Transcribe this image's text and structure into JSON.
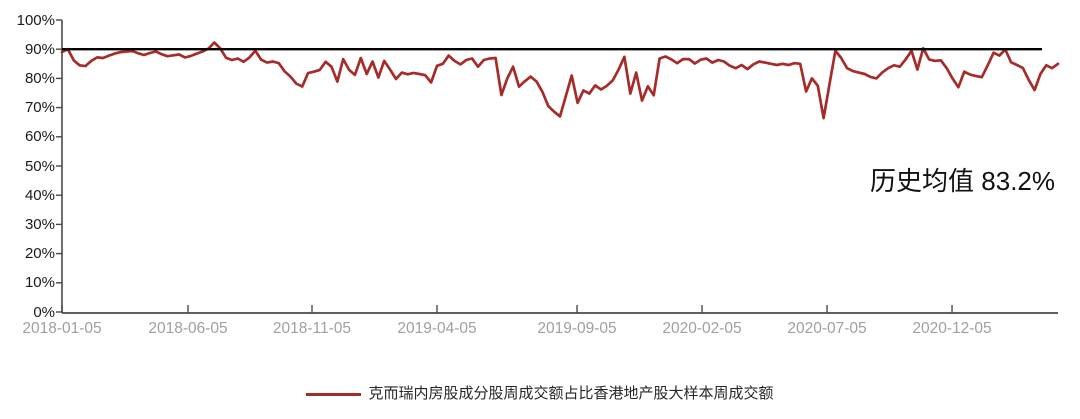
{
  "colors": {
    "series_line": "#a62c2a",
    "reference_line": "#000000",
    "axis": "#4a4a4a",
    "y_tick_label": "#1a1a1a",
    "x_tick_label": "#a0a0a0",
    "annotation_text": "#111111",
    "legend_text": "#262626",
    "background": "#ffffff"
  },
  "chart_data": {
    "type": "line",
    "title": "",
    "xlabel": "",
    "ylabel": "",
    "ylim": [
      0,
      100
    ],
    "grid": false,
    "legend_position": "bottom-center",
    "y_ticks": [
      {
        "value": 0,
        "label": "0%"
      },
      {
        "value": 10,
        "label": "10%"
      },
      {
        "value": 20,
        "label": "20%"
      },
      {
        "value": 30,
        "label": "30%"
      },
      {
        "value": 40,
        "label": "40%"
      },
      {
        "value": 50,
        "label": "50%"
      },
      {
        "value": 60,
        "label": "60%"
      },
      {
        "value": 70,
        "label": "70%"
      },
      {
        "value": 80,
        "label": "80%"
      },
      {
        "value": 90,
        "label": "90%"
      },
      {
        "value": 100,
        "label": "100%"
      }
    ],
    "x_ticks": [
      {
        "label": "2018-01-05",
        "pos": 0.0
      },
      {
        "label": "2018-06-05",
        "pos": 0.1265
      },
      {
        "label": "2018-11-05",
        "pos": 0.251
      },
      {
        "label": "2019-04-05",
        "pos": 0.3765
      },
      {
        "label": "2019-09-05",
        "pos": 0.5171
      },
      {
        "label": "2020-02-05",
        "pos": 0.6426
      },
      {
        "label": "2020-07-05",
        "pos": 0.7681
      },
      {
        "label": "2020-12-05",
        "pos": 0.8936
      }
    ],
    "reference_line": {
      "value": 90
    },
    "annotation": {
      "text": "历史均值 83.2%",
      "mean_percent": 83.2
    },
    "series": [
      {
        "name": "克而瑞内房股成分股周成交额占比香港地产股大样本周成交额",
        "unit": "%",
        "x_start": "2018-01-05",
        "x_interval": "weekly",
        "values": [
          89,
          90,
          86.2,
          84.5,
          84.2,
          86,
          87.2,
          87,
          87.8,
          88.5,
          89,
          89.2,
          89.4,
          88.6,
          88,
          88.7,
          89.2,
          88.3,
          87.6,
          87.9,
          88.2,
          87.2,
          87.7,
          88.5,
          89.2,
          90.2,
          92.3,
          90.3,
          87.1,
          86.3,
          86.8,
          85.7,
          87.2,
          89.5,
          86.4,
          85.4,
          85.8,
          85.2,
          82.4,
          80.6,
          78.2,
          77.2,
          81.8,
          82.3,
          82.9,
          85.7,
          84,
          78.9,
          86.6,
          82.9,
          81.2,
          87,
          81.5,
          85.8,
          80.3,
          86,
          83,
          79.8,
          82,
          81.4,
          81.9,
          81.5,
          81.1,
          78.6,
          84.3,
          85,
          87.8,
          86,
          84.8,
          86.3,
          86.8,
          84,
          86.3,
          86.8,
          87,
          74.3,
          80,
          84,
          77.2,
          79,
          80.6,
          78.9,
          75.4,
          70.5,
          68.6,
          67,
          74,
          81,
          71.6,
          75.9,
          74.8,
          77.6,
          76.2,
          77.5,
          79.3,
          83,
          87.4,
          74.8,
          82,
          72.4,
          77.3,
          74.2,
          86.8,
          87.5,
          86.5,
          85.2,
          86.6,
          86.6,
          85.1,
          86.4,
          86.8,
          85.4,
          86.3,
          85.8,
          84.3,
          83.5,
          84.6,
          83.2,
          84.8,
          85.8,
          85.4,
          85,
          84.6,
          85,
          84.6,
          85.2,
          85,
          75.5,
          80,
          77.5,
          66.4,
          78,
          89.5,
          87,
          83.5,
          82.5,
          82,
          81.5,
          80.5,
          80,
          82,
          83.5,
          84.5,
          84,
          86.5,
          89.5,
          83,
          90.3,
          86.5,
          86,
          86.2,
          83.5,
          80,
          77,
          82.3,
          81.3,
          80.8,
          80.4,
          84.5,
          88.8,
          87.8,
          89.9,
          85.5,
          84.6,
          83.6,
          79.5,
          76,
          81.5,
          84.5,
          83.5,
          85
        ]
      }
    ]
  }
}
